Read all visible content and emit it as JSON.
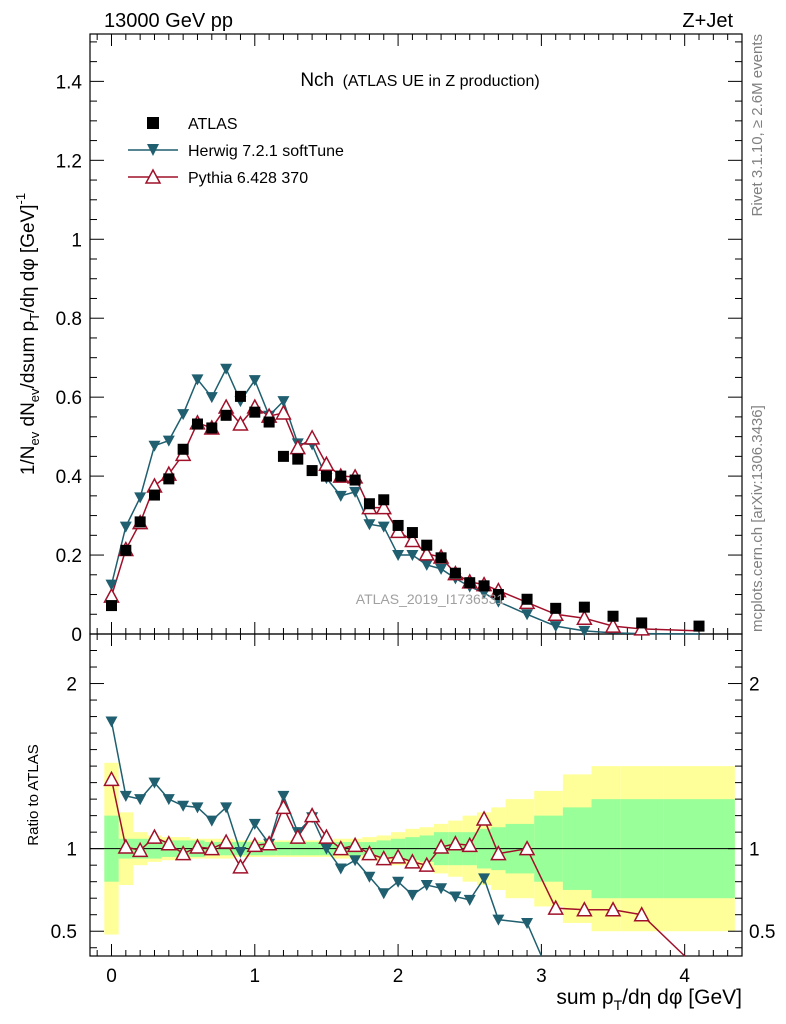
{
  "header": {
    "left": "13000 GeV pp",
    "right": "Z+Jet"
  },
  "side_labels": {
    "rivet": "Rivet 3.1.10, ≥ 2.6M events",
    "mcplots": "mcplots.cern.ch [arXiv:1306.3436]"
  },
  "watermark": "ATLAS_2019_I1736531",
  "colors": {
    "atlas": "#000000",
    "herwig": "#1f5f6f",
    "pythia": "#a0102a",
    "band_inner": "#99ff99",
    "band_outer": "#ffff99"
  },
  "chart_data": [
    {
      "type": "scatter",
      "title_main": "Nch",
      "title_sub": "(ATLAS UE in Z production)",
      "ylabel": "1/N_ev dN_ev/dsum p_T/dη dφ [GeV]^-1",
      "xlim": [
        -0.15,
        4.4
      ],
      "ylim": [
        0,
        1.52
      ],
      "yticks": [
        0,
        0.2,
        0.4,
        0.6,
        0.8,
        1,
        1.2,
        1.4
      ],
      "ytick_labels": [
        "0",
        "0.2",
        "0.4",
        "0.6",
        "0.8",
        "1",
        "1.2",
        "1.4"
      ],
      "legend_position": "top-left",
      "x": [
        0.0,
        0.1,
        0.2,
        0.3,
        0.4,
        0.5,
        0.6,
        0.7,
        0.8,
        0.9,
        1.0,
        1.1,
        1.2,
        1.3,
        1.4,
        1.5,
        1.6,
        1.7,
        1.8,
        1.9,
        2.0,
        2.1,
        2.2,
        2.3,
        2.4,
        2.5,
        2.6,
        2.7,
        2.9,
        3.1,
        3.3,
        3.5,
        3.7,
        4.1
      ],
      "series": [
        {
          "name": "ATLAS",
          "marker": "square",
          "values": [
            0.072,
            0.212,
            0.284,
            0.352,
            0.393,
            0.468,
            0.532,
            0.522,
            0.554,
            0.602,
            0.562,
            0.537,
            0.45,
            0.443,
            0.414,
            0.4,
            0.4,
            0.39,
            0.33,
            0.34,
            0.275,
            0.257,
            0.225,
            0.193,
            0.154,
            0.13,
            0.122,
            0.1,
            0.088,
            0.065,
            0.068,
            0.045,
            0.028,
            0.02
          ]
        },
        {
          "name": "Herwig 7.2.1 softTune",
          "marker": "triangle-down-filled",
          "values": [
            0.125,
            0.272,
            0.346,
            0.477,
            0.49,
            0.557,
            0.645,
            0.6,
            0.672,
            0.59,
            0.643,
            0.553,
            0.59,
            0.483,
            0.48,
            0.395,
            0.35,
            0.36,
            0.278,
            0.272,
            0.2,
            0.2,
            0.175,
            0.165,
            0.141,
            0.12,
            0.104,
            0.082,
            0.05,
            0.02,
            0.008,
            0.003,
            0.001,
            0.0
          ]
        },
        {
          "name": "Pythia 6.428 370",
          "marker": "triangle-up-open",
          "values": [
            0.096,
            0.214,
            0.282,
            0.375,
            0.405,
            0.455,
            0.535,
            0.522,
            0.575,
            0.532,
            0.575,
            0.552,
            0.56,
            0.472,
            0.497,
            0.43,
            0.4,
            0.398,
            0.32,
            0.32,
            0.26,
            0.237,
            0.203,
            0.195,
            0.153,
            0.132,
            0.125,
            0.11,
            0.08,
            0.05,
            0.04,
            0.02,
            0.013,
            0.008
          ]
        }
      ]
    },
    {
      "type": "line",
      "ylabel": "Ratio to ATLAS",
      "xlabel": "sum p_T/dη dφ [GeV]",
      "xlim": [
        -0.15,
        4.4
      ],
      "ylim": [
        0.35,
        2.3
      ],
      "yticks": [
        0.5,
        1,
        2
      ],
      "ytick_labels": [
        "0.5",
        "1",
        "2"
      ],
      "xticks": [
        0,
        1,
        2,
        3,
        4
      ],
      "xtick_labels": [
        "0",
        "1",
        "2",
        "3",
        "4"
      ],
      "reference_line": 1,
      "bands": {
        "edges": [
          -0.05,
          0.05,
          0.15,
          0.25,
          0.35,
          0.45,
          0.55,
          0.65,
          0.75,
          0.85,
          0.95,
          1.05,
          1.15,
          1.25,
          1.35,
          1.45,
          1.55,
          1.65,
          1.75,
          1.85,
          1.95,
          2.05,
          2.15,
          2.25,
          2.35,
          2.45,
          2.55,
          2.65,
          2.75,
          2.95,
          3.15,
          3.35,
          3.55,
          3.85,
          4.35
        ],
        "inner_half": [
          0.2,
          0.06,
          0.06,
          0.06,
          0.05,
          0.05,
          0.05,
          0.04,
          0.04,
          0.04,
          0.04,
          0.04,
          0.04,
          0.04,
          0.04,
          0.04,
          0.04,
          0.04,
          0.04,
          0.05,
          0.06,
          0.07,
          0.08,
          0.1,
          0.1,
          0.1,
          0.12,
          0.13,
          0.15,
          0.2,
          0.25,
          0.3,
          0.3,
          0.3
        ],
        "outer_half": [
          0.52,
          0.22,
          0.1,
          0.08,
          0.07,
          0.07,
          0.06,
          0.06,
          0.06,
          0.05,
          0.05,
          0.05,
          0.05,
          0.05,
          0.05,
          0.05,
          0.06,
          0.06,
          0.07,
          0.08,
          0.1,
          0.12,
          0.13,
          0.15,
          0.17,
          0.2,
          0.22,
          0.25,
          0.3,
          0.35,
          0.45,
          0.5,
          0.5,
          0.5
        ]
      },
      "series": [
        {
          "name": "Herwig 7.2.1 softTune",
          "x": [
            0.0,
            0.1,
            0.2,
            0.3,
            0.4,
            0.5,
            0.6,
            0.7,
            0.8,
            0.9,
            1.0,
            1.1,
            1.2,
            1.3,
            1.4,
            1.5,
            1.6,
            1.7,
            1.8,
            1.9,
            2.0,
            2.1,
            2.2,
            2.3,
            2.4,
            2.5,
            2.6,
            2.7,
            2.9,
            3.0
          ],
          "values": [
            1.77,
            1.32,
            1.3,
            1.4,
            1.3,
            1.26,
            1.25,
            1.17,
            1.25,
            0.98,
            1.15,
            1.03,
            1.32,
            1.1,
            1.19,
            1.0,
            0.88,
            0.93,
            0.83,
            0.73,
            0.8,
            0.72,
            0.78,
            0.76,
            0.71,
            0.69,
            0.82,
            0.57,
            0.55,
            0.33
          ]
        },
        {
          "name": "Pythia 6.428 370",
          "x": [
            0.0,
            0.1,
            0.2,
            0.3,
            0.4,
            0.5,
            0.6,
            0.7,
            0.8,
            0.9,
            1.0,
            1.1,
            1.2,
            1.3,
            1.4,
            1.5,
            1.6,
            1.7,
            1.8,
            1.9,
            2.0,
            2.1,
            2.2,
            2.3,
            2.4,
            2.5,
            2.6,
            2.7,
            2.9,
            3.1,
            3.3,
            3.5,
            3.7,
            4.0
          ],
          "values": [
            1.42,
            1.01,
            0.99,
            1.07,
            1.03,
            0.97,
            1.01,
            1.0,
            1.04,
            0.89,
            1.02,
            1.03,
            1.25,
            1.07,
            1.2,
            1.07,
            1.0,
            1.02,
            0.97,
            0.94,
            0.95,
            0.92,
            0.9,
            1.01,
            1.03,
            1.02,
            1.18,
            0.97,
            1.0,
            0.64,
            0.63,
            0.63,
            0.6,
            0.33
          ]
        }
      ]
    }
  ]
}
